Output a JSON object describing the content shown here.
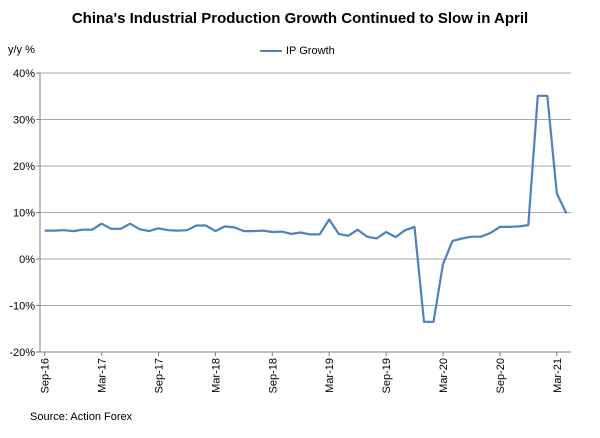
{
  "chart_data": {
    "type": "line",
    "title": "China's Industrial Production Growth Continued to Slow in April",
    "ylabel": "y/y %",
    "xlabel": "",
    "source": "Source: Action Forex",
    "ylim": [
      -20,
      40
    ],
    "y_ticks": [
      "40%",
      "30%",
      "20%",
      "10%",
      "0%",
      "-10%",
      "-20%"
    ],
    "y_tick_values": [
      40,
      30,
      20,
      10,
      0,
      -10,
      -20
    ],
    "x_tick_labels": [
      "Sep-16",
      "Mar-17",
      "Sep-17",
      "Mar-18",
      "Sep-18",
      "Mar-19",
      "Sep-19",
      "Mar-20",
      "Sep-20",
      "Mar-21"
    ],
    "x_tick_indices": [
      0,
      6,
      12,
      18,
      24,
      30,
      36,
      42,
      48,
      54
    ],
    "x": [
      "Sep-16",
      "Oct-16",
      "Nov-16",
      "Dec-16",
      "Jan-17",
      "Feb-17",
      "Mar-17",
      "Apr-17",
      "May-17",
      "Jun-17",
      "Jul-17",
      "Aug-17",
      "Sep-17",
      "Oct-17",
      "Nov-17",
      "Dec-17",
      "Jan-18",
      "Feb-18",
      "Mar-18",
      "Apr-18",
      "May-18",
      "Jun-18",
      "Jul-18",
      "Aug-18",
      "Sep-18",
      "Oct-18",
      "Nov-18",
      "Dec-18",
      "Jan-19",
      "Feb-19",
      "Mar-19",
      "Apr-19",
      "May-19",
      "Jun-19",
      "Jul-19",
      "Aug-19",
      "Sep-19",
      "Oct-19",
      "Nov-19",
      "Dec-19",
      "Jan-20",
      "Feb-20",
      "Mar-20",
      "Apr-20",
      "May-20",
      "Jun-20",
      "Jul-20",
      "Aug-20",
      "Sep-20",
      "Oct-20",
      "Nov-20",
      "Dec-20",
      "Jan-21",
      "Feb-21",
      "Mar-21",
      "Apr-21"
    ],
    "series": [
      {
        "name": "IP Growth",
        "color": "#4f81bd",
        "values": [
          6.1,
          6.1,
          6.2,
          6.0,
          6.3,
          6.3,
          7.6,
          6.5,
          6.5,
          7.6,
          6.4,
          6.0,
          6.6,
          6.2,
          6.1,
          6.2,
          7.2,
          7.2,
          6.0,
          7.0,
          6.8,
          6.0,
          6.0,
          6.1,
          5.8,
          5.9,
          5.4,
          5.7,
          5.3,
          5.3,
          8.5,
          5.4,
          5.0,
          6.3,
          4.8,
          4.4,
          5.8,
          4.7,
          6.2,
          6.9,
          -13.5,
          -13.5,
          -1.1,
          3.9,
          4.4,
          4.8,
          4.8,
          5.6,
          6.9,
          6.9,
          7.0,
          7.3,
          35.1,
          35.1,
          14.1,
          9.8
        ]
      }
    ],
    "grid": "horizontal",
    "legend_position": "top-center"
  }
}
